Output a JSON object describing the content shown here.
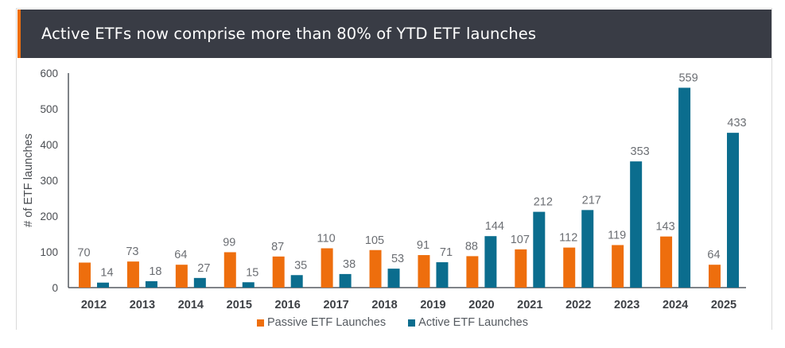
{
  "title": "Active ETFs now comprise more than 80% of YTD ETF launches",
  "colors": {
    "passive": "#ee6e0d",
    "active": "#0b6d8e",
    "title_bg": "#393c45",
    "accent": "#ee6e0d",
    "axis": "#555a60",
    "label": "#6b6e73"
  },
  "chart_data": {
    "type": "bar",
    "title": "Active ETFs now comprise more than 80% of YTD ETF launches",
    "xlabel": "",
    "ylabel": "# of ETF launches",
    "ylim": [
      0,
      600
    ],
    "yticks": [
      0,
      100,
      200,
      300,
      400,
      500,
      600
    ],
    "grid": false,
    "legend_position": "bottom-center",
    "categories": [
      "2012",
      "2013",
      "2014",
      "2015",
      "2016",
      "2017",
      "2018",
      "2019",
      "2020",
      "2021",
      "2022",
      "2023",
      "2024",
      "2025"
    ],
    "series": [
      {
        "name": "Passive ETF Launches",
        "color": "#ee6e0d",
        "values": [
          70,
          73,
          64,
          99,
          87,
          110,
          105,
          91,
          88,
          107,
          112,
          119,
          143,
          64
        ]
      },
      {
        "name": "Active ETF Launches",
        "color": "#0b6d8e",
        "values": [
          14,
          18,
          27,
          15,
          35,
          38,
          53,
          71,
          144,
          212,
          217,
          353,
          559,
          433
        ]
      }
    ]
  },
  "legend": [
    {
      "label": "Passive ETF Launches",
      "color": "#ee6e0d"
    },
    {
      "label": "Active ETF Launches",
      "color": "#0b6d8e"
    }
  ]
}
